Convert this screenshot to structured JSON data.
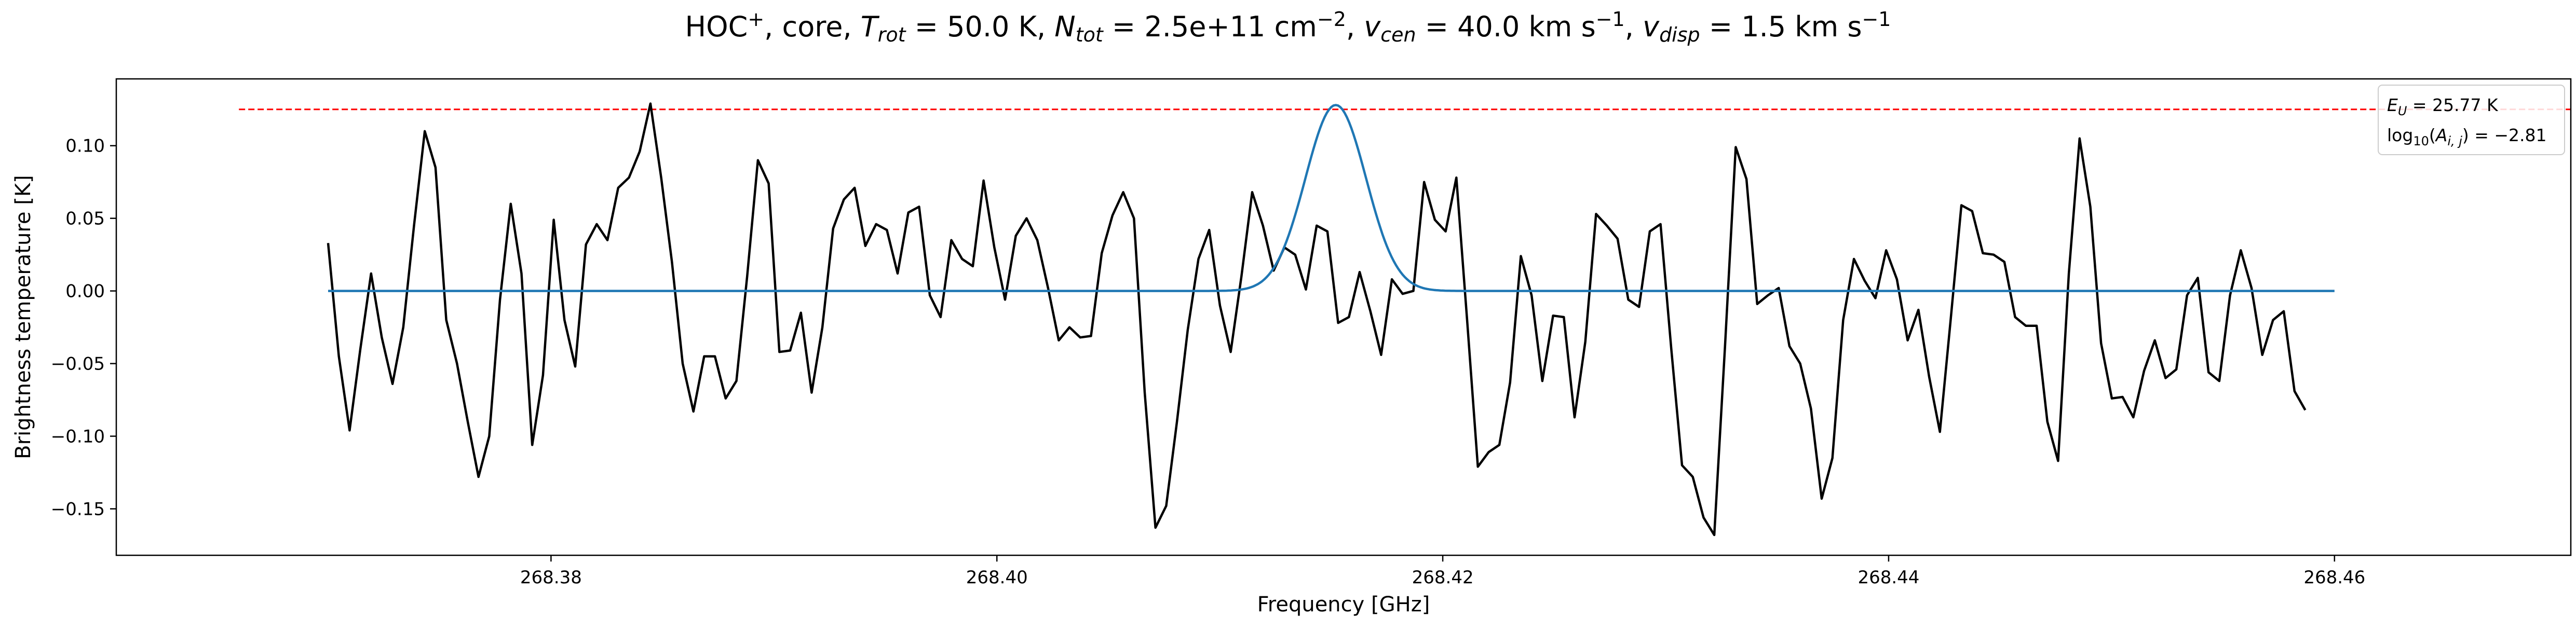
{
  "chart_data": {
    "type": "line",
    "title": {
      "molecule": "HOC",
      "molecule_sup": "+",
      "source": ", core, ",
      "trot_sym": "T",
      "trot_sub": "rot",
      "trot_val": " =  50.0 K, ",
      "ntot_sym": "N",
      "ntot_sub": "tot",
      "ntot_val": " =  2.5e+11 cm",
      "ntot_exp": "−2",
      "vcen_sym": "v",
      "vcen_sub": "cen",
      "vcen_val": " =  40.0 km s",
      "vcen_exp": "−1",
      "vdisp_sym": "v",
      "vdisp_sub": "disp",
      "vdisp_val": " =  1.5 km s",
      "vdisp_exp": "−1",
      "sep": ", "
    },
    "xlabel": "Frequency [GHz]",
    "ylabel": "Brightness temperature [K]",
    "xlim": [
      268.3605,
      268.4706
    ],
    "ylim": [
      -0.182,
      0.146
    ],
    "xticks": [
      268.38,
      268.4,
      268.42,
      268.44,
      268.46
    ],
    "xtick_labels": [
      "268.38",
      "268.40",
      "268.42",
      "268.44",
      "268.46"
    ],
    "yticks": [
      -0.15,
      -0.1,
      -0.05,
      0.0,
      0.05,
      0.1
    ],
    "ytick_labels": [
      "−0.15",
      "−0.10",
      "−0.05",
      "0.00",
      "0.05",
      "0.10"
    ],
    "grid": false,
    "legend": {
      "placement": "top-right",
      "eu_sym": "E",
      "eu_sub": "U",
      "eu_val": " = 25.77 K",
      "a_log": "log",
      "a_log_sub": "10",
      "a_open": "(",
      "a_sym": "A",
      "a_sub": "i, j",
      "a_val": ") = −2.81"
    },
    "reference_line": {
      "y": 0.125,
      "x_start": 268.366,
      "x_end": 268.4706,
      "color": "#ff0000",
      "style": "dashed"
    },
    "colors": {
      "observed": "#000000",
      "model": "#1f77b4"
    },
    "series": [
      {
        "role": "observed",
        "x_start": 268.37,
        "x_step": 0.000482,
        "values": [
          0.033,
          -0.045,
          -0.096,
          -0.04,
          0.012,
          -0.032,
          -0.064,
          -0.025,
          0.045,
          0.11,
          0.085,
          -0.02,
          -0.05,
          -0.09,
          -0.128,
          -0.1,
          -0.006,
          0.06,
          0.012,
          -0.106,
          -0.058,
          0.049,
          -0.02,
          -0.052,
          0.032,
          0.046,
          0.035,
          0.071,
          0.078,
          0.096,
          0.129,
          0.078,
          0.02,
          -0.05,
          -0.083,
          -0.045,
          -0.045,
          -0.074,
          -0.062,
          0.01,
          0.09,
          0.074,
          -0.042,
          -0.041,
          -0.015,
          -0.07,
          -0.025,
          0.043,
          0.063,
          0.071,
          0.031,
          0.046,
          0.042,
          0.012,
          0.054,
          0.058,
          -0.003,
          -0.018,
          0.035,
          0.022,
          0.017,
          0.076,
          0.03,
          -0.006,
          0.038,
          0.05,
          0.035,
          0.002,
          -0.034,
          -0.025,
          -0.032,
          -0.031,
          0.026,
          0.052,
          0.068,
          0.05,
          -0.07,
          -0.163,
          -0.148,
          -0.09,
          -0.027,
          0.022,
          0.042,
          -0.01,
          -0.042,
          0.01,
          0.068,
          0.045,
          0.014,
          0.03,
          0.025,
          0.001,
          0.045,
          0.041,
          -0.022,
          -0.018,
          0.013,
          -0.014,
          -0.044,
          0.008,
          -0.002,
          0.0,
          0.075,
          0.049,
          0.041,
          0.078,
          -0.02,
          -0.121,
          -0.111,
          -0.106,
          -0.063,
          0.024,
          -0.003,
          -0.062,
          -0.017,
          -0.018,
          -0.087,
          -0.035,
          0.053,
          0.045,
          0.036,
          -0.006,
          -0.011,
          0.041,
          0.046,
          -0.04,
          -0.12,
          -0.128,
          -0.156,
          -0.168,
          -0.038,
          0.099,
          0.077,
          -0.009,
          -0.003,
          0.002,
          -0.038,
          -0.05,
          -0.081,
          -0.143,
          -0.115,
          -0.02,
          0.022,
          0.007,
          -0.005,
          0.028,
          0.008,
          -0.034,
          -0.013,
          -0.059,
          -0.097,
          -0.02,
          0.059,
          0.055,
          0.026,
          0.025,
          0.02,
          -0.018,
          -0.024,
          -0.024,
          -0.09,
          -0.117,
          0.012,
          0.105,
          0.058,
          -0.036,
          -0.074,
          -0.073,
          -0.087,
          -0.055,
          -0.034,
          -0.06,
          -0.054,
          -0.003,
          0.009,
          -0.056,
          -0.062,
          -0.003,
          0.028,
          0.002,
          -0.044,
          -0.02,
          -0.014,
          -0.069,
          -0.082
        ]
      },
      {
        "role": "model",
        "type": "gaussian",
        "amplitude": 0.128,
        "center": 268.4152,
        "sigma": 0.00136,
        "x_range": [
          268.37,
          268.46
        ]
      }
    ]
  }
}
